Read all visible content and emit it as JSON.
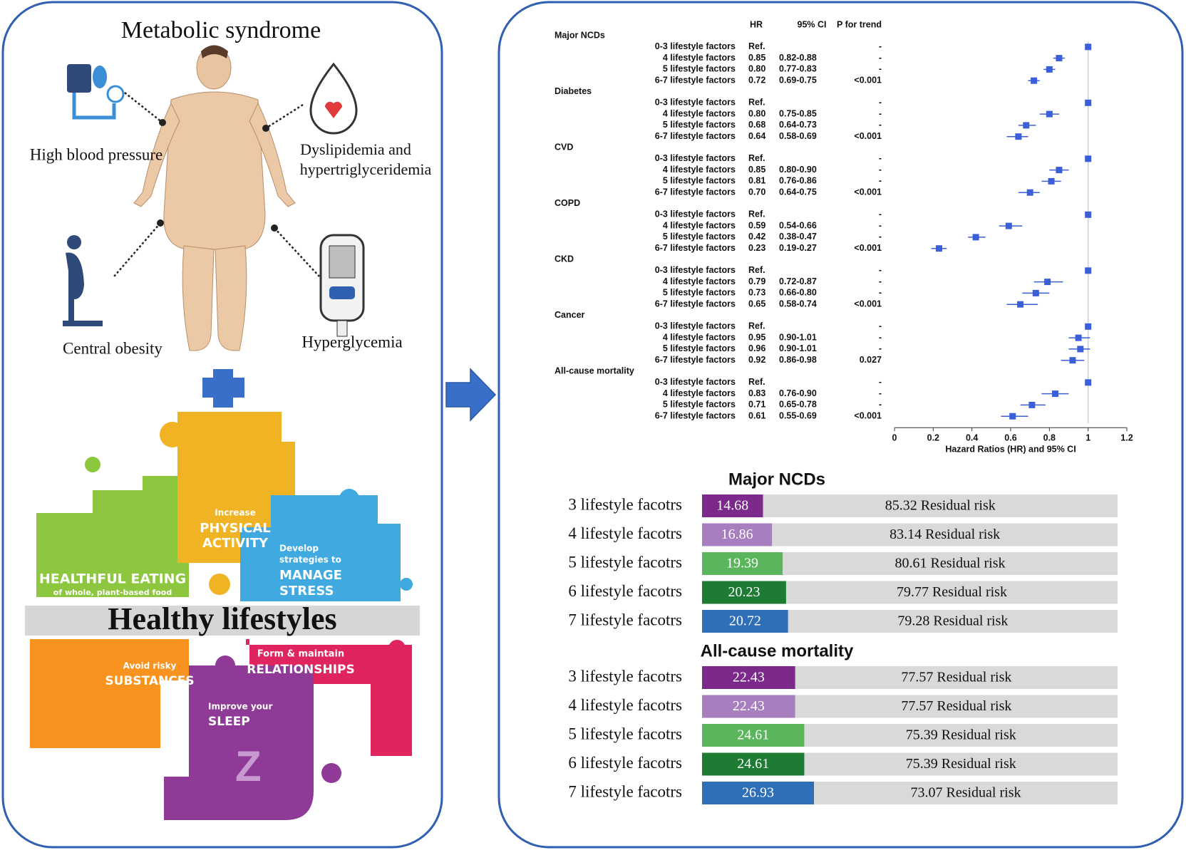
{
  "metabolic_syndrome": {
    "title": "Metabolic syndrome",
    "labels": [
      "High blood pressure",
      "Dyslipidemia and",
      "hypertriglyceridemia",
      "Central obesity",
      "Hyperglycemia"
    ]
  },
  "lifestyles": {
    "title": "Healthy lifestyles",
    "tiles": [
      {
        "lines": [
          "HEALTHFUL EATING",
          "of whole, plant-based food"
        ]
      },
      {
        "lines": [
          "Increase",
          "PHYSICAL",
          "ACTIVITY"
        ]
      },
      {
        "lines": [
          "Develop",
          "strategies to",
          "MANAGE",
          "STRESS"
        ]
      },
      {
        "lines": [
          "Avoid risky",
          "SUBSTANCES"
        ]
      },
      {
        "lines": [
          "Form & maintain",
          "RELATIONSHIPS"
        ]
      },
      {
        "lines": [
          "Improve your",
          "SLEEP"
        ]
      }
    ]
  },
  "chart_data": [
    {
      "type": "forest",
      "columns": [
        "HR",
        "95% CI",
        "P for trend"
      ],
      "rows": [
        "0-3 lifestyle factors",
        "4 lifestyle factors",
        "5 lifestyle factors",
        "6-7 lifestyle factors"
      ],
      "color": "#3a5fd9",
      "xlabel": "Hazard Ratios (HR) and 95% CI",
      "xlim": [
        0,
        1.2
      ],
      "xticks": [
        0,
        0.2,
        0.4,
        0.6,
        0.8,
        1,
        1.2
      ],
      "groups": [
        {
          "name": "Major NCDs",
          "values": [
            1,
            0.85,
            0.8,
            0.72
          ],
          "value_labels": [
            "Ref.",
            "0.85",
            "0.80",
            "0.72"
          ],
          "ci_low": [
            null,
            0.82,
            0.77,
            0.69
          ],
          "ci_high": [
            null,
            0.88,
            0.83,
            0.75
          ],
          "ci_labels": [
            null,
            "0.82-0.88",
            "0.77-0.83",
            "0.69-0.75"
          ],
          "p_labels": [
            "-",
            "-",
            "-",
            "<0.001"
          ]
        },
        {
          "name": "Diabetes",
          "values": [
            1,
            0.8,
            0.68,
            0.64
          ],
          "value_labels": [
            "Ref.",
            "0.80",
            "0.68",
            "0.64"
          ],
          "ci_low": [
            null,
            0.75,
            0.64,
            0.58
          ],
          "ci_high": [
            null,
            0.85,
            0.73,
            0.69
          ],
          "ci_labels": [
            null,
            "0.75-0.85",
            "0.64-0.73",
            "0.58-0.69"
          ],
          "p_labels": [
            "-",
            "-",
            "-",
            "<0.001"
          ]
        },
        {
          "name": "CVD",
          "values": [
            1,
            0.85,
            0.81,
            0.7
          ],
          "value_labels": [
            "Ref.",
            "0.85",
            "0.81",
            "0.70"
          ],
          "ci_low": [
            null,
            0.8,
            0.76,
            0.64
          ],
          "ci_high": [
            null,
            0.9,
            0.86,
            0.75
          ],
          "ci_labels": [
            null,
            "0.80-0.90",
            "0.76-0.86",
            "0.64-0.75"
          ],
          "p_labels": [
            "-",
            "-",
            "-",
            "<0.001"
          ]
        },
        {
          "name": "COPD",
          "values": [
            1,
            0.59,
            0.42,
            0.23
          ],
          "value_labels": [
            "Ref.",
            "0.59",
            "0.42",
            "0.23"
          ],
          "ci_low": [
            null,
            0.54,
            0.38,
            0.19
          ],
          "ci_high": [
            null,
            0.66,
            0.47,
            0.27
          ],
          "ci_labels": [
            null,
            "0.54-0.66",
            "0.38-0.47",
            "0.19-0.27"
          ],
          "p_labels": [
            "-",
            "-",
            "-",
            "<0.001"
          ]
        },
        {
          "name": "CKD",
          "values": [
            1,
            0.79,
            0.73,
            0.65
          ],
          "value_labels": [
            "Ref.",
            "0.79",
            "0.73",
            "0.65"
          ],
          "ci_low": [
            null,
            0.72,
            0.66,
            0.58
          ],
          "ci_high": [
            null,
            0.87,
            0.8,
            0.74
          ],
          "ci_labels": [
            null,
            "0.72-0.87",
            "0.66-0.80",
            "0.58-0.74"
          ],
          "p_labels": [
            "-",
            "-",
            "-",
            "<0.001"
          ]
        },
        {
          "name": "Cancer",
          "values": [
            1,
            0.95,
            0.96,
            0.92
          ],
          "value_labels": [
            "Ref.",
            "0.95",
            "0.96",
            "0.92"
          ],
          "ci_low": [
            null,
            0.9,
            0.9,
            0.86
          ],
          "ci_high": [
            null,
            1.01,
            1.01,
            0.98
          ],
          "ci_labels": [
            null,
            "0.90-1.01",
            "0.90-1.01",
            "0.86-0.98"
          ],
          "p_labels": [
            "-",
            "-",
            "-",
            "0.027"
          ]
        },
        {
          "name": "All-cause mortality",
          "values": [
            1,
            0.83,
            0.71,
            0.61
          ],
          "value_labels": [
            "Ref.",
            "0.83",
            "0.71",
            "0.61"
          ],
          "ci_low": [
            null,
            0.76,
            0.65,
            0.55
          ],
          "ci_high": [
            null,
            0.9,
            0.78,
            0.69
          ],
          "ci_labels": [
            null,
            "0.76-0.90",
            "0.65-0.78",
            "0.55-0.69"
          ],
          "p_labels": [
            "-",
            "-",
            "-",
            "<0.001"
          ]
        }
      ]
    },
    {
      "type": "stacked-bar",
      "title": "Major NCDs",
      "categories": [
        "3 lifestyle facotrs",
        "4 lifestyle facotrs",
        "5 lifestyle facotrs",
        "6 lifestyle facotrs",
        "7 lifestyle facotrs"
      ],
      "xlim": [
        0,
        100
      ],
      "series": [
        {
          "colors": [
            "#7b2a8c",
            "#a77fbf",
            "#5bb55c",
            "#1e7b34",
            "#2f6fb7"
          ],
          "values": [
            14.68,
            16.86,
            19.39,
            20.23,
            20.72
          ]
        },
        {
          "color": "#d9d9d9",
          "values": [
            85.32,
            83.14,
            80.61,
            79.77,
            79.28
          ],
          "value_labels": [
            "85.32 Residual risk",
            "83.14 Residual risk",
            "80.61 Residual risk",
            "79.77 Residual risk",
            "79.28 Residual risk"
          ]
        }
      ]
    },
    {
      "type": "stacked-bar",
      "title": "All-cause mortality",
      "categories": [
        "3 lifestyle facotrs",
        "4 lifestyle facotrs",
        "5 lifestyle facotrs",
        "6 lifestyle facotrs",
        "7 lifestyle facotrs"
      ],
      "xlim": [
        0,
        100
      ],
      "series": [
        {
          "colors": [
            "#7b2a8c",
            "#a77fbf",
            "#5bb55c",
            "#1e7b34",
            "#2f6fb7"
          ],
          "values": [
            22.43,
            22.43,
            24.61,
            24.61,
            26.93
          ]
        },
        {
          "color": "#d9d9d9",
          "values": [
            77.57,
            77.57,
            75.39,
            75.39,
            73.07
          ],
          "value_labels": [
            "77.57 Residual risk",
            "77.57 Residual risk",
            "75.39 Residual risk",
            "75.39 Residual risk",
            "73.07 Residual risk"
          ]
        }
      ]
    }
  ]
}
